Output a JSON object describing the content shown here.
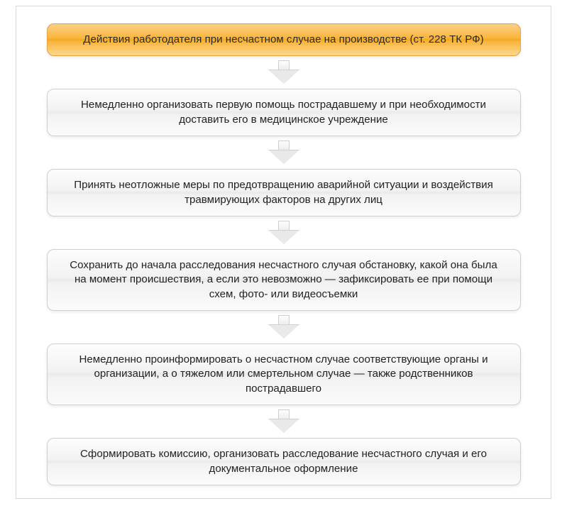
{
  "flowchart": {
    "type": "flowchart",
    "direction": "vertical",
    "background_color": "#ffffff",
    "frame_border_color": "#d9d9d9",
    "header": {
      "text": "Действия работодателя при несчастном случае на производстве (ст. 228 ТК РФ)",
      "fill_gradient": [
        "#fcd089",
        "#f8b53a",
        "#f5a81f",
        "#f8b53a",
        "#fcd78f"
      ],
      "border_color": "#e6a23c",
      "text_color": "#2b2b2b",
      "border_radius": 10,
      "font_size": 15.1,
      "font_weight": 500
    },
    "step_style": {
      "fill_gradient": [
        "#fdfdfd",
        "#f2f2f2",
        "#eaeaea",
        "#f2f2f2",
        "#fbfbfb"
      ],
      "border_color": "#cfcfcf",
      "text_color": "#222222",
      "border_radius": 10,
      "font_size": 15.1
    },
    "arrow_style": {
      "fill_gradient": [
        "#fdfdfd",
        "#ececec"
      ],
      "border_color": "#cfcfcf",
      "width": 42,
      "height": 34
    },
    "steps": [
      {
        "text": "Немедленно организовать первую помощь пострадавшему и при необходимости доставить его в медицинское учреждение"
      },
      {
        "text": "Принять неотложные меры по предотвращению аварийной ситуации и воздействия травмирующих факторов на других лиц"
      },
      {
        "text": "Сохранить до начала расследования несчастного случая обстановку, какой она была на момент происшествия, а если это невозможно — зафиксировать ее при помощи схем, фото- или видеосъемки"
      },
      {
        "text": "Немедленно проинформировать о несчастном случае соответствующие органы и организации, а о тяжелом или смертельном случае — также родственников пострадавшего"
      },
      {
        "text": "Сформировать комиссию, организовать расследование несчастного случая и его документальное оформление"
      }
    ]
  }
}
